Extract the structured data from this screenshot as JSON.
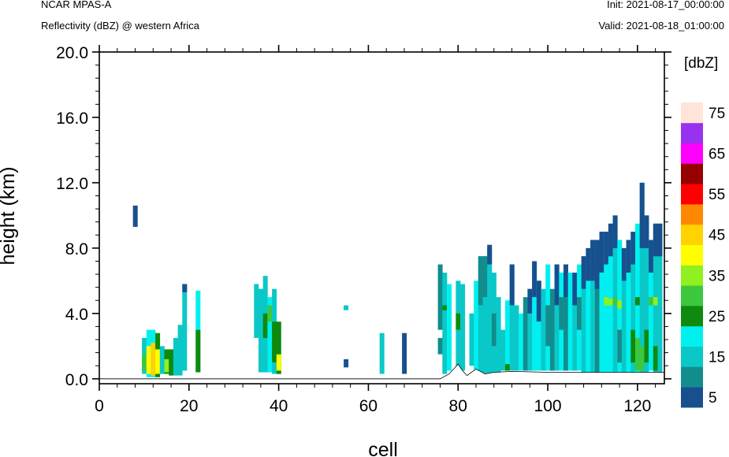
{
  "header": {
    "model": "NCAR MPAS-A",
    "field": "Reflectivity (dBZ) @ western Africa",
    "init": "Init: 2021-08-17_00:00:00",
    "valid": "Valid: 2021-08-18_01:00:00"
  },
  "chart_data": {
    "type": "heatmap",
    "title": "Reflectivity (dBZ) @ western Africa",
    "xlabel": "cell",
    "ylabel": "height (km)",
    "xlim": [
      0,
      126
    ],
    "ylim": [
      -0.3,
      20.0
    ],
    "xticks": [
      0,
      20,
      40,
      60,
      80,
      100,
      120
    ],
    "xtick_labels": [
      "0",
      "20",
      "40",
      "60",
      "80",
      "100",
      "120"
    ],
    "yticks": [
      0.0,
      4.0,
      8.0,
      12.0,
      16.0,
      20.0
    ],
    "ytick_labels": [
      "0.0",
      "4.0",
      "8.0",
      "12.0",
      "16.0",
      "20.0"
    ],
    "colorbar": {
      "unit_label": "[dbZ]",
      "levels": [
        5,
        10,
        15,
        20,
        25,
        30,
        35,
        40,
        45,
        50,
        55,
        60,
        65,
        70,
        75
      ],
      "labels": [
        "5",
        "15",
        "25",
        "35",
        "45",
        "55",
        "65",
        "75"
      ],
      "colors": [
        "#18508e",
        "#128c8c",
        "#0ac8c8",
        "#00f0f0",
        "#0e8a0e",
        "#3cc83c",
        "#90f020",
        "#ffff00",
        "#ffd200",
        "#ff8800",
        "#ff0000",
        "#960000",
        "#ff00ff",
        "#9932ee",
        "#ffe4d8"
      ]
    },
    "columns": [
      {
        "x": 8,
        "segments": [
          [
            9.3,
            10.6,
            5
          ]
        ]
      },
      {
        "x": 10,
        "segments": [
          [
            0.3,
            2.5,
            15
          ],
          [
            0.5,
            1.5,
            30
          ]
        ]
      },
      {
        "x": 11,
        "segments": [
          [
            0.1,
            3.0,
            20
          ],
          [
            0.3,
            2.0,
            40
          ]
        ]
      },
      {
        "x": 12,
        "segments": [
          [
            0.1,
            3.0,
            20
          ],
          [
            0.2,
            2.2,
            45
          ]
        ]
      },
      {
        "x": 13,
        "segments": [
          [
            0.1,
            2.8,
            25
          ],
          [
            0.3,
            1.8,
            40
          ]
        ]
      },
      {
        "x": 14,
        "segments": [
          [
            0.3,
            2.0,
            15
          ]
        ]
      },
      {
        "x": 15,
        "segments": [
          [
            0.3,
            1.8,
            25
          ],
          [
            0.4,
            1.2,
            35
          ]
        ]
      },
      {
        "x": 16,
        "segments": [
          [
            0.2,
            1.8,
            25
          ]
        ]
      },
      {
        "x": 17,
        "segments": [
          [
            0.2,
            2.5,
            15
          ]
        ]
      },
      {
        "x": 18,
        "segments": [
          [
            0.2,
            3.3,
            15
          ]
        ]
      },
      {
        "x": 19,
        "segments": [
          [
            0.5,
            5.8,
            15
          ],
          [
            5.3,
            5.8,
            5
          ]
        ]
      },
      {
        "x": 22,
        "segments": [
          [
            0.4,
            5.4,
            20
          ],
          [
            0.4,
            3.0,
            25
          ]
        ]
      },
      {
        "x": 35,
        "segments": [
          [
            2.5,
            5.8,
            15
          ]
        ]
      },
      {
        "x": 36,
        "segments": [
          [
            0.4,
            5.5,
            15
          ]
        ]
      },
      {
        "x": 37,
        "segments": [
          [
            0.4,
            6.3,
            15
          ],
          [
            2.5,
            4.0,
            25
          ]
        ]
      },
      {
        "x": 38,
        "segments": [
          [
            0.4,
            5.0,
            20
          ],
          [
            3.5,
            4.5,
            30
          ]
        ]
      },
      {
        "x": 39,
        "segments": [
          [
            0.3,
            5.5,
            15
          ],
          [
            1.0,
            3.5,
            25
          ]
        ]
      },
      {
        "x": 40,
        "segments": [
          [
            0.3,
            3.5,
            25
          ],
          [
            0.5,
            1.5,
            40
          ]
        ]
      },
      {
        "x": 55,
        "segments": [
          [
            4.2,
            4.5,
            15
          ],
          [
            0.7,
            1.2,
            5
          ]
        ]
      },
      {
        "x": 63,
        "segments": [
          [
            0.3,
            2.8,
            15
          ]
        ]
      },
      {
        "x": 68,
        "segments": [
          [
            0.3,
            2.8,
            5
          ]
        ]
      },
      {
        "x": 76,
        "segments": [
          [
            1.5,
            2.5,
            10
          ],
          [
            3.0,
            7.0,
            10
          ]
        ]
      },
      {
        "x": 77,
        "segments": [
          [
            0.3,
            6.5,
            15
          ],
          [
            4.2,
            4.5,
            25
          ]
        ]
      },
      {
        "x": 78,
        "segments": [
          [
            0.5,
            5.8,
            20
          ]
        ]
      },
      {
        "x": 80,
        "segments": [
          [
            0.5,
            6.0,
            15
          ],
          [
            3.0,
            4.0,
            25
          ]
        ]
      },
      {
        "x": 81,
        "segments": [
          [
            0.5,
            5.8,
            15
          ]
        ]
      },
      {
        "x": 83,
        "segments": [
          [
            0.8,
            4.0,
            15
          ]
        ]
      },
      {
        "x": 84,
        "segments": [
          [
            0.5,
            6.0,
            20
          ]
        ]
      },
      {
        "x": 85,
        "segments": [
          [
            0.3,
            7.5,
            15
          ],
          [
            4.5,
            7.5,
            10
          ]
        ]
      },
      {
        "x": 86,
        "segments": [
          [
            0.3,
            7.5,
            15
          ],
          [
            5.0,
            7.5,
            10
          ]
        ]
      },
      {
        "x": 87,
        "segments": [
          [
            0.3,
            8.0,
            15
          ],
          [
            7.0,
            8.2,
            5
          ]
        ]
      },
      {
        "x": 88,
        "segments": [
          [
            0.4,
            6.5,
            15
          ],
          [
            2.0,
            4.0,
            10
          ]
        ]
      },
      {
        "x": 89,
        "segments": [
          [
            0.4,
            5.0,
            15
          ]
        ]
      },
      {
        "x": 90,
        "segments": [
          [
            0.5,
            3.0,
            15
          ]
        ]
      },
      {
        "x": 91,
        "segments": [
          [
            0.5,
            4.8,
            20
          ],
          [
            0.5,
            0.9,
            25
          ]
        ]
      },
      {
        "x": 92,
        "segments": [
          [
            0.5,
            7.0,
            15
          ],
          [
            4.5,
            7.0,
            5
          ]
        ]
      },
      {
        "x": 93,
        "segments": [
          [
            0.5,
            4.5,
            15
          ]
        ]
      },
      {
        "x": 94,
        "segments": [
          [
            0.5,
            4.0,
            20
          ]
        ]
      },
      {
        "x": 95,
        "segments": [
          [
            0.5,
            5.0,
            10
          ]
        ]
      },
      {
        "x": 96,
        "segments": [
          [
            0.5,
            5.5,
            15
          ],
          [
            4.0,
            5.5,
            5
          ]
        ]
      },
      {
        "x": 97,
        "segments": [
          [
            0.5,
            7.2,
            20
          ],
          [
            5.0,
            7.2,
            5
          ]
        ]
      },
      {
        "x": 98,
        "segments": [
          [
            0.5,
            6.0,
            20
          ],
          [
            3.5,
            6.0,
            5
          ]
        ]
      },
      {
        "x": 99,
        "segments": [
          [
            0.5,
            5.5,
            15
          ]
        ]
      },
      {
        "x": 100,
        "segments": [
          [
            0.5,
            7.0,
            20
          ],
          [
            2.0,
            4.5,
            10
          ]
        ]
      },
      {
        "x": 101,
        "segments": [
          [
            0.5,
            5.5,
            10
          ]
        ]
      },
      {
        "x": 102,
        "segments": [
          [
            0.5,
            7.0,
            15
          ],
          [
            4.5,
            7.0,
            5
          ]
        ]
      },
      {
        "x": 103,
        "segments": [
          [
            0.5,
            6.5,
            20
          ],
          [
            3.0,
            5.0,
            10
          ]
        ]
      },
      {
        "x": 104,
        "segments": [
          [
            0.5,
            7.0,
            10
          ],
          [
            5.0,
            7.0,
            5
          ]
        ]
      },
      {
        "x": 105,
        "segments": [
          [
            0.5,
            6.5,
            20
          ]
        ]
      },
      {
        "x": 106,
        "segments": [
          [
            0.5,
            6.5,
            15
          ],
          [
            4.5,
            6.5,
            5
          ]
        ]
      },
      {
        "x": 107,
        "segments": [
          [
            0.5,
            7.0,
            20
          ],
          [
            3.0,
            5.0,
            10
          ]
        ]
      },
      {
        "x": 108,
        "segments": [
          [
            0.3,
            7.5,
            15
          ],
          [
            5.5,
            7.5,
            5
          ]
        ]
      },
      {
        "x": 109,
        "segments": [
          [
            0.3,
            8.0,
            20
          ],
          [
            6.0,
            8.0,
            5
          ]
        ]
      },
      {
        "x": 110,
        "segments": [
          [
            0.3,
            8.5,
            15
          ],
          [
            6.0,
            8.5,
            5
          ]
        ]
      },
      {
        "x": 111,
        "segments": [
          [
            0.3,
            8.5,
            10
          ],
          [
            5.5,
            8.5,
            5
          ]
        ]
      },
      {
        "x": 112,
        "segments": [
          [
            0.3,
            9.0,
            20
          ],
          [
            6.5,
            9.0,
            5
          ]
        ]
      },
      {
        "x": 113,
        "segments": [
          [
            0.3,
            9.0,
            20
          ],
          [
            4.5,
            5.0,
            35
          ],
          [
            7.0,
            9.0,
            5
          ]
        ]
      },
      {
        "x": 114,
        "segments": [
          [
            0.3,
            9.5,
            20
          ],
          [
            4.5,
            4.9,
            35
          ],
          [
            7.5,
            9.5,
            5
          ]
        ]
      },
      {
        "x": 115,
        "segments": [
          [
            0.3,
            10.0,
            15
          ],
          [
            4.5,
            5.0,
            30
          ],
          [
            8.0,
            10.0,
            5
          ]
        ]
      },
      {
        "x": 116,
        "segments": [
          [
            0.3,
            8.5,
            20
          ],
          [
            4.3,
            4.8,
            35
          ],
          [
            1.0,
            3.0,
            10
          ]
        ]
      },
      {
        "x": 117,
        "segments": [
          [
            0.3,
            8.0,
            15
          ],
          [
            6.0,
            8.0,
            5
          ]
        ]
      },
      {
        "x": 118,
        "segments": [
          [
            0.3,
            8.5,
            20
          ],
          [
            6.5,
            8.5,
            5
          ]
        ]
      },
      {
        "x": 119,
        "segments": [
          [
            0.3,
            9.0,
            15
          ],
          [
            1.0,
            3.0,
            25
          ],
          [
            7.0,
            9.0,
            5
          ]
        ]
      },
      {
        "x": 120,
        "segments": [
          [
            0.3,
            9.5,
            20
          ],
          [
            0.5,
            2.5,
            30
          ],
          [
            4.5,
            5.0,
            25
          ]
        ]
      },
      {
        "x": 121,
        "segments": [
          [
            0.3,
            12.0,
            15
          ],
          [
            0.5,
            2.0,
            30
          ],
          [
            8.0,
            12.0,
            5
          ]
        ]
      },
      {
        "x": 122,
        "segments": [
          [
            0.3,
            10.0,
            15
          ],
          [
            1.0,
            3.0,
            25
          ],
          [
            8.0,
            10.0,
            5
          ]
        ]
      },
      {
        "x": 123,
        "segments": [
          [
            0.5,
            8.5,
            20
          ],
          [
            4.5,
            5.0,
            30
          ],
          [
            6.5,
            8.5,
            5
          ]
        ]
      },
      {
        "x": 124,
        "segments": [
          [
            0.3,
            9.5,
            15
          ],
          [
            0.5,
            2.0,
            25
          ],
          [
            4.5,
            5.0,
            35
          ],
          [
            7.5,
            9.5,
            5
          ]
        ]
      },
      {
        "x": 125,
        "segments": [
          [
            0.3,
            9.5,
            15
          ],
          [
            7.5,
            9.5,
            5
          ]
        ]
      }
    ],
    "terrain": [
      [
        0,
        0.0
      ],
      [
        76,
        0.0
      ],
      [
        78,
        0.3
      ],
      [
        80,
        0.9
      ],
      [
        81,
        0.5
      ],
      [
        82,
        0.2
      ],
      [
        84,
        0.6
      ],
      [
        86,
        0.3
      ],
      [
        88,
        0.4
      ],
      [
        92,
        0.45
      ],
      [
        100,
        0.4
      ],
      [
        110,
        0.4
      ],
      [
        126,
        0.4
      ]
    ]
  }
}
